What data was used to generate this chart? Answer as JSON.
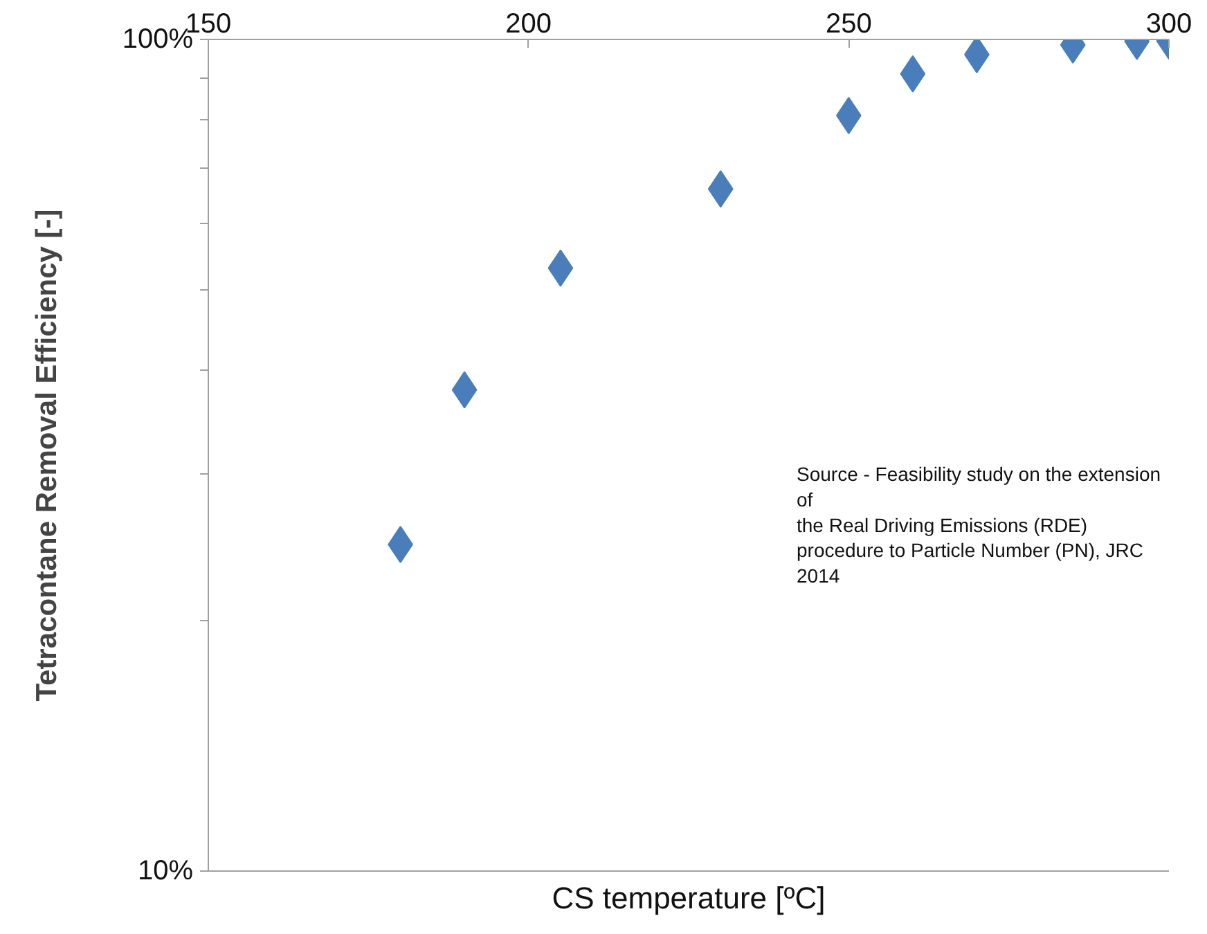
{
  "chart_data": {
    "type": "scatter",
    "xlabel": "CS temperature [ºC]",
    "ylabel": "Tetracontane Removal Efficiency [-]",
    "x": [
      180,
      190,
      205,
      230,
      250,
      260,
      270,
      285,
      295,
      300
    ],
    "series": [
      {
        "color": "#4a7ebb",
        "values": [
          24.7,
          37.9,
          53.1,
          66.1,
          81,
          90.9,
          95.9,
          98.5,
          99.5,
          99.6
        ]
      }
    ],
    "xlim": [
      150,
      300
    ],
    "xticks": [
      150,
      200,
      250,
      300
    ],
    "ylim": [
      10,
      100
    ],
    "yticks": [
      {
        "value": 10,
        "label": "10%"
      },
      {
        "value": 20,
        "label": null
      },
      {
        "value": 30,
        "label": null
      },
      {
        "value": 40,
        "label": null
      },
      {
        "value": 50,
        "label": null
      },
      {
        "value": 60,
        "label": null
      },
      {
        "value": 70,
        "label": null
      },
      {
        "value": 80,
        "label": null
      },
      {
        "value": 90,
        "label": null
      },
      {
        "value": 100,
        "label": "100%"
      }
    ],
    "log": "y",
    "grid": false,
    "marker": "diamond",
    "annotations": [
      "Source - Feasibility study on the extension\nof\nthe Real Driving Emissions (RDE)\nprocedure to Particle Number (PN), JRC\n2014"
    ]
  }
}
